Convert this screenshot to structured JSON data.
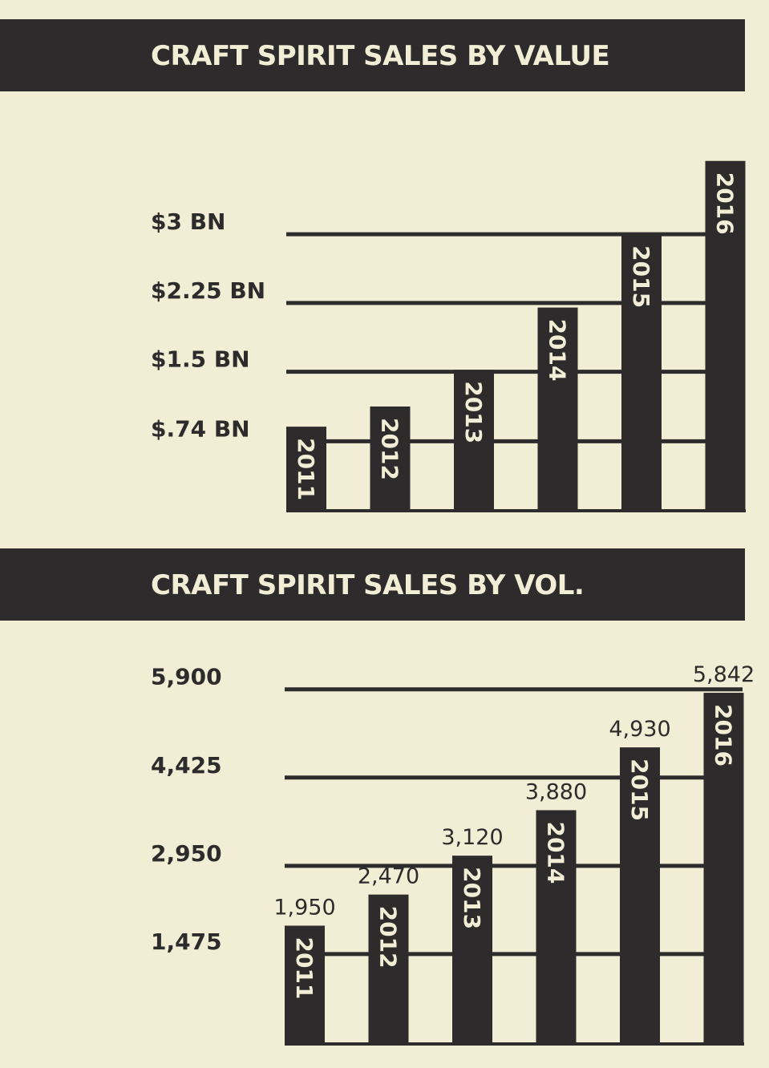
{
  "chart_data": [
    {
      "type": "bar",
      "title": "CRAFT SPIRIT SALES BY VALUE",
      "categories": [
        "2011",
        "2012",
        "2013",
        "2014",
        "2015",
        "2016"
      ],
      "values": [
        0.9,
        1.12,
        1.52,
        2.2,
        3.0,
        3.8
      ],
      "ylim": [
        0,
        3.85
      ],
      "yticks": [
        0.74,
        1.5,
        2.25,
        3.0
      ],
      "ytick_labels": [
        "$.74 BN",
        "$1.5 BN",
        "$2.25 BN",
        "$3 BN"
      ],
      "grid": true,
      "colors": {
        "bar": "#2d2b2b",
        "background": "#f2eed6",
        "label": "#f2eed6"
      }
    },
    {
      "type": "bar",
      "title": "CRAFT SPIRIT SALES BY VOL.",
      "categories": [
        "2011",
        "2012",
        "2013",
        "2014",
        "2015",
        "2016"
      ],
      "values": [
        1950,
        2470,
        3120,
        3880,
        4930,
        5842
      ],
      "data_labels": [
        "1,950",
        "2,470",
        "3,120",
        "3,880",
        "4,930",
        "5,842"
      ],
      "ylim": [
        0,
        5950
      ],
      "yticks": [
        1475,
        2950,
        4425,
        5900
      ],
      "ytick_labels": [
        "1,475",
        "2,950",
        "4,425",
        "5,900"
      ],
      "grid": true,
      "colors": {
        "bar": "#2d2b2b",
        "background": "#f2eed6",
        "label": "#f2eed6"
      }
    }
  ]
}
